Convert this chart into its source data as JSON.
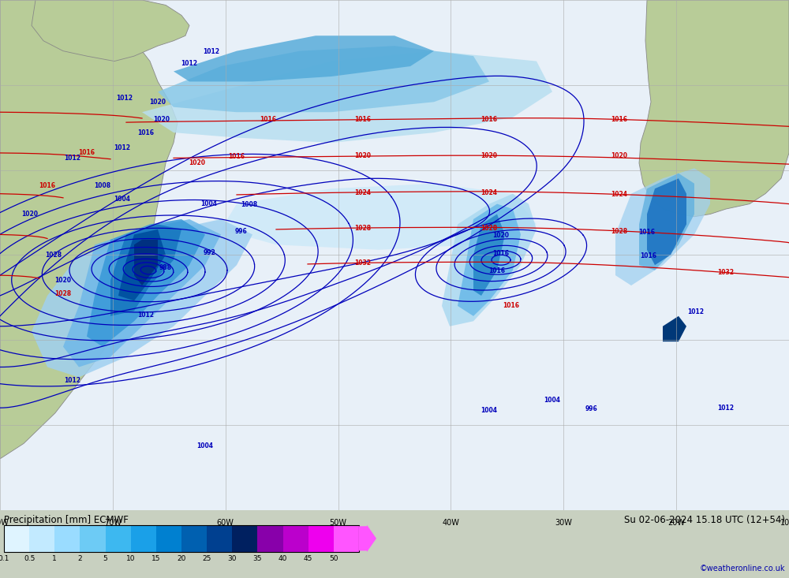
{
  "title_left": "Precipitation [mm] ECMWF",
  "title_right": "Su 02-06-2024 15.18 UTC (12+54)",
  "watermark": "©weatheronline.co.uk",
  "colorbar_levels": [
    0.1,
    0.5,
    1,
    2,
    5,
    10,
    15,
    20,
    25,
    30,
    35,
    40,
    45,
    50
  ],
  "colorbar_colors": [
    "#dff4ff",
    "#c2eaff",
    "#9adcff",
    "#6dcbf5",
    "#3db8f0",
    "#1aa0e8",
    "#0080d0",
    "#0060b0",
    "#004090",
    "#002060",
    "#8800aa",
    "#bb00cc",
    "#ee00ee",
    "#ff55ff"
  ],
  "map_bg": "#f0f4f0",
  "ocean_bg": "#e8f0f8",
  "land_color": "#b8cc98",
  "land_edge": "#888888",
  "blue_isobar": "#0000bb",
  "red_isobar": "#cc0000",
  "grid_color": "#aaaaaa",
  "bottom_bg": "#c8d0c0",
  "figsize": [
    10.0,
    7.33
  ],
  "dpi": 100
}
